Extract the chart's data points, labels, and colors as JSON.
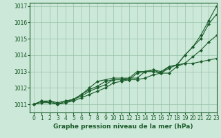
{
  "background_color": "#cce8d8",
  "plot_bg_color": "#cce8d8",
  "grid_color": "#99c4aa",
  "line_color": "#1a5c2a",
  "xlabel": "Graphe pression niveau de la mer (hPa)",
  "ylim": [
    1010.5,
    1017.2
  ],
  "xlim": [
    -0.5,
    23
  ],
  "yticks": [
    1011,
    1012,
    1013,
    1014,
    1015,
    1016,
    1017
  ],
  "xticks": [
    0,
    1,
    2,
    3,
    4,
    5,
    6,
    7,
    8,
    9,
    10,
    11,
    12,
    13,
    14,
    15,
    16,
    17,
    18,
    19,
    20,
    21,
    22,
    23
  ],
  "series": [
    [
      1011.0,
      1011.2,
      1011.1,
      1011.0,
      1011.1,
      1011.2,
      1011.4,
      1011.6,
      1011.8,
      1012.0,
      1012.3,
      1012.4,
      1012.5,
      1012.5,
      1012.6,
      1012.8,
      1012.9,
      1013.2,
      1013.4,
      1013.5,
      1013.5,
      1013.6,
      1013.7,
      1013.8
    ],
    [
      1011.0,
      1011.2,
      1011.2,
      1011.1,
      1011.2,
      1011.3,
      1011.5,
      1011.8,
      1012.0,
      1012.2,
      1012.5,
      1012.5,
      1012.6,
      1012.6,
      1013.0,
      1013.0,
      1012.9,
      1012.9,
      1013.3,
      1013.5,
      1013.9,
      1014.3,
      1014.8,
      1015.2
    ],
    [
      1011.0,
      1011.1,
      1011.1,
      1011.0,
      1011.1,
      1011.3,
      1011.6,
      1011.9,
      1012.1,
      1012.4,
      1012.5,
      1012.5,
      1012.5,
      1012.9,
      1013.0,
      1013.1,
      1013.0,
      1013.3,
      1013.4,
      1014.0,
      1014.5,
      1015.0,
      1015.9,
      1016.5
    ],
    [
      1011.0,
      1011.1,
      1011.2,
      1011.0,
      1011.2,
      1011.3,
      1011.6,
      1012.0,
      1012.4,
      1012.5,
      1012.6,
      1012.6,
      1012.6,
      1013.0,
      1013.0,
      1013.1,
      1012.9,
      1013.3,
      1013.4,
      1014.0,
      1014.5,
      1015.2,
      1016.1,
      1017.0
    ]
  ],
  "marker": "D",
  "markersize": 2.0,
  "linewidth": 0.8,
  "tick_labelsize": 5.5,
  "xlabel_fontsize": 6.5
}
